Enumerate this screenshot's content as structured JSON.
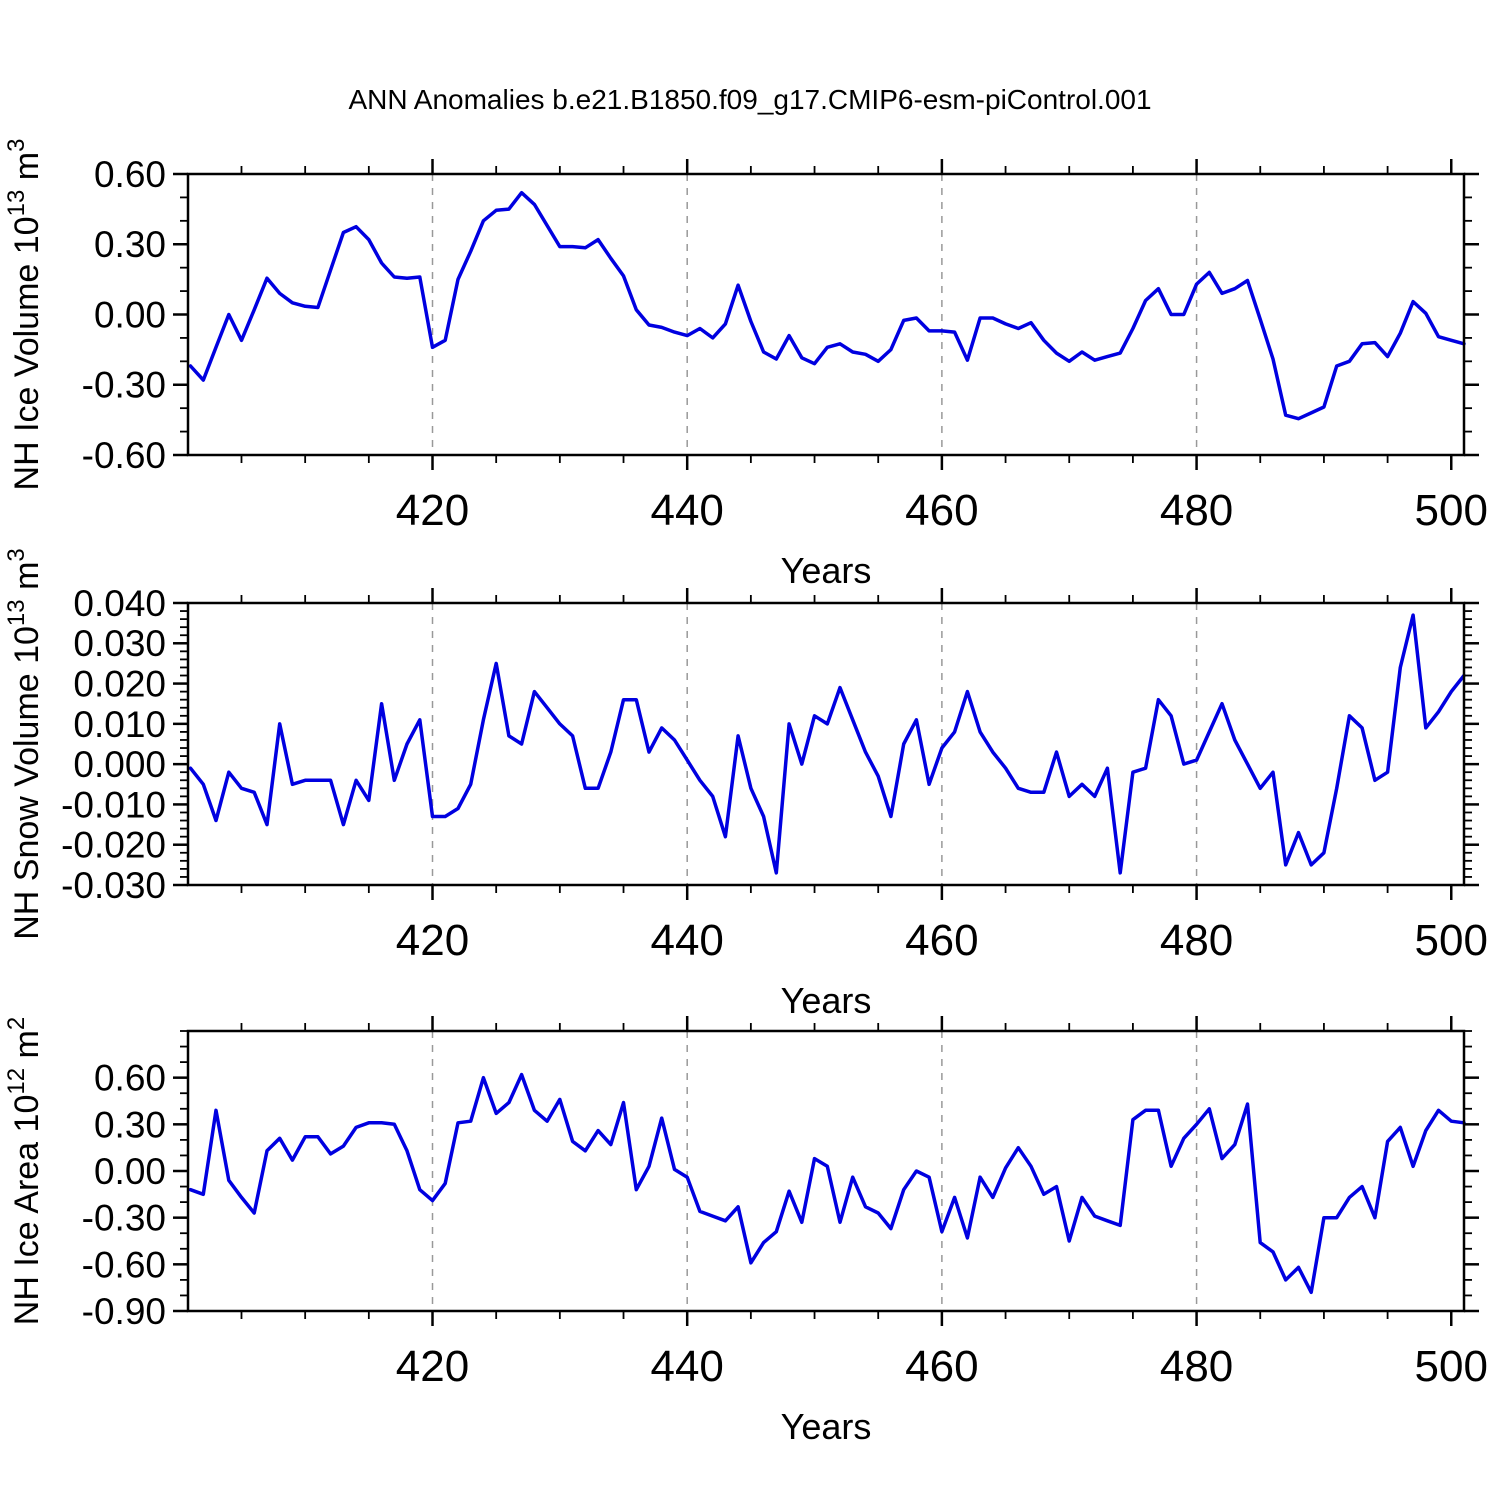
{
  "title": "ANN Anomalies b.e21.B1850.f09_g17.CMIP6-esm-piControl.001",
  "xlabel": "Years",
  "line_color": "#0000e0",
  "axis_color": "#000000",
  "grid_color": "#999999",
  "xlim": [
    400.8,
    501.0
  ],
  "x_major_ticks": [
    420,
    440,
    460,
    480,
    500
  ],
  "x_major_labels": [
    "420",
    "440",
    "460",
    "480",
    "500"
  ],
  "x_minor_ticks": [
    405,
    410,
    415,
    425,
    430,
    435,
    445,
    450,
    455,
    465,
    470,
    475,
    485,
    490,
    495
  ],
  "x_grid": [
    420,
    440,
    460,
    480
  ],
  "panels": [
    {
      "id": "nh-ice-volume",
      "ylabel": [
        [
          "NH Ice Volume 10",
          false
        ],
        [
          "13",
          true
        ],
        [
          " m",
          false
        ],
        [
          "3",
          true
        ]
      ],
      "ylim": [
        -0.6,
        0.6
      ],
      "ymajor": [
        0.6,
        0.3,
        0.0,
        -0.3,
        -0.6
      ],
      "ylabels": [
        "0.60",
        "0.30",
        "0.00",
        "-0.30",
        "-0.60"
      ],
      "yminor_step": 0.1
    },
    {
      "id": "nh-snow-volume",
      "ylabel": [
        [
          "NH Snow Volume 10",
          false
        ],
        [
          "13",
          true
        ],
        [
          " m",
          false
        ],
        [
          "3",
          true
        ]
      ],
      "ylim": [
        -0.03,
        0.04
      ],
      "ymajor": [
        0.04,
        0.03,
        0.02,
        0.01,
        0.0,
        -0.01,
        -0.02,
        -0.03
      ],
      "ylabels": [
        "0.040",
        "0.030",
        "0.020",
        "0.010",
        "0.000",
        "-0.010",
        "-0.020",
        "-0.030"
      ],
      "yminor_step": 0.002
    },
    {
      "id": "nh-ice-area",
      "ylabel": [
        [
          "NH Ice Area 10",
          false
        ],
        [
          "12",
          true
        ],
        [
          " m",
          false
        ],
        [
          "2",
          true
        ]
      ],
      "ylim": [
        -0.9,
        0.9
      ],
      "ymajor": [
        0.6,
        0.3,
        0.0,
        -0.3,
        -0.6,
        -0.9
      ],
      "ylabels": [
        "0.60",
        "0.30",
        "0.00",
        "-0.30",
        "-0.60",
        "-0.90"
      ],
      "yminor_step": 0.1
    }
  ],
  "chart_data": [
    {
      "type": "line",
      "title": "ANN Anomalies b.e21.B1850.f09_g17.CMIP6-esm-piControl.001",
      "ylabel": "NH Ice Volume 10^13 m^3",
      "xlabel": "Years",
      "xlim": [
        400.8,
        501.0
      ],
      "ylim": [
        -0.6,
        0.6
      ],
      "legend": "none",
      "grid": "vertical dashed at 420,440,460,480",
      "x": [
        401,
        402,
        403,
        404,
        405,
        406,
        407,
        408,
        409,
        410,
        411,
        412,
        413,
        414,
        415,
        416,
        417,
        418,
        419,
        420,
        421,
        422,
        423,
        424,
        425,
        426,
        427,
        428,
        429,
        430,
        431,
        432,
        433,
        434,
        435,
        436,
        437,
        438,
        439,
        440,
        441,
        442,
        443,
        444,
        445,
        446,
        447,
        448,
        449,
        450,
        451,
        452,
        453,
        454,
        455,
        456,
        457,
        458,
        459,
        460,
        461,
        462,
        463,
        464,
        465,
        466,
        467,
        468,
        469,
        470,
        471,
        472,
        473,
        474,
        475,
        476,
        477,
        478,
        479,
        480,
        481,
        482,
        483,
        484,
        485,
        486,
        487,
        488,
        489,
        490,
        491,
        492,
        493,
        494,
        495,
        496,
        497,
        498,
        499,
        500,
        501
      ],
      "values": [
        -0.22,
        -0.28,
        -0.14,
        0.0,
        -0.11,
        0.02,
        0.155,
        0.09,
        0.05,
        0.035,
        0.03,
        0.19,
        0.35,
        0.375,
        0.32,
        0.22,
        0.16,
        0.155,
        0.16,
        -0.14,
        -0.11,
        0.15,
        0.27,
        0.4,
        0.445,
        0.45,
        0.52,
        0.47,
        0.38,
        0.29,
        0.29,
        0.285,
        0.32,
        0.24,
        0.165,
        0.02,
        -0.045,
        -0.055,
        -0.075,
        -0.09,
        -0.06,
        -0.1,
        -0.04,
        0.125,
        -0.03,
        -0.16,
        -0.19,
        -0.09,
        -0.185,
        -0.21,
        -0.14,
        -0.125,
        -0.16,
        -0.17,
        -0.2,
        -0.15,
        -0.025,
        -0.015,
        -0.07,
        -0.07,
        -0.075,
        -0.195,
        -0.015,
        -0.015,
        -0.04,
        -0.06,
        -0.035,
        -0.11,
        -0.165,
        -0.2,
        -0.16,
        -0.195,
        -0.18,
        -0.165,
        -0.06,
        0.06,
        0.11,
        0.0,
        0.0,
        0.13,
        0.18,
        0.09,
        0.11,
        0.145,
        -0.02,
        -0.19,
        -0.43,
        -0.445,
        -0.42,
        -0.395,
        -0.22,
        -0.2,
        -0.125,
        -0.12,
        -0.18,
        -0.08,
        0.055,
        0.005,
        -0.095,
        -0.11,
        -0.125
      ]
    },
    {
      "type": "line",
      "title": "",
      "ylabel": "NH Snow Volume 10^13 m^3",
      "xlabel": "Years",
      "xlim": [
        400.8,
        501.0
      ],
      "ylim": [
        -0.03,
        0.04
      ],
      "legend": "none",
      "grid": "vertical dashed at 420,440,460,480",
      "x": [
        401,
        402,
        403,
        404,
        405,
        406,
        407,
        408,
        409,
        410,
        411,
        412,
        413,
        414,
        415,
        416,
        417,
        418,
        419,
        420,
        421,
        422,
        423,
        424,
        425,
        426,
        427,
        428,
        429,
        430,
        431,
        432,
        433,
        434,
        435,
        436,
        437,
        438,
        439,
        440,
        441,
        442,
        443,
        444,
        445,
        446,
        447,
        448,
        449,
        450,
        451,
        452,
        453,
        454,
        455,
        456,
        457,
        458,
        459,
        460,
        461,
        462,
        463,
        464,
        465,
        466,
        467,
        468,
        469,
        470,
        471,
        472,
        473,
        474,
        475,
        476,
        477,
        478,
        479,
        480,
        481,
        482,
        483,
        484,
        485,
        486,
        487,
        488,
        489,
        490,
        491,
        492,
        493,
        494,
        495,
        496,
        497,
        498,
        499,
        500,
        501
      ],
      "values": [
        -0.001,
        -0.005,
        -0.014,
        -0.002,
        -0.006,
        -0.007,
        -0.015,
        0.01,
        -0.005,
        -0.004,
        -0.004,
        -0.004,
        -0.015,
        -0.004,
        -0.009,
        0.015,
        -0.004,
        0.005,
        0.011,
        -0.013,
        -0.013,
        -0.011,
        -0.005,
        0.011,
        0.025,
        0.007,
        0.005,
        0.018,
        0.014,
        0.01,
        0.007,
        -0.006,
        -0.006,
        0.003,
        0.016,
        0.016,
        0.003,
        0.009,
        0.006,
        0.001,
        -0.004,
        -0.008,
        -0.018,
        0.007,
        -0.006,
        -0.013,
        -0.027,
        0.01,
        0.0,
        0.012,
        0.01,
        0.019,
        0.011,
        0.003,
        -0.003,
        -0.013,
        0.005,
        0.011,
        -0.005,
        0.004,
        0.008,
        0.018,
        0.008,
        0.003,
        -0.001,
        -0.006,
        -0.007,
        -0.007,
        0.003,
        -0.008,
        -0.005,
        -0.008,
        -0.001,
        -0.027,
        -0.002,
        -0.001,
        0.016,
        0.012,
        0.0,
        0.001,
        0.008,
        0.015,
        0.006,
        0.0,
        -0.006,
        -0.002,
        -0.025,
        -0.017,
        -0.025,
        -0.022,
        -0.006,
        0.012,
        0.009,
        -0.004,
        -0.002,
        0.024,
        0.037,
        0.009,
        0.013,
        0.018,
        0.022
      ]
    },
    {
      "type": "line",
      "title": "",
      "ylabel": "NH Ice Area 10^12 m^2",
      "xlabel": "Years",
      "xlim": [
        400.8,
        501.0
      ],
      "ylim": [
        -0.9,
        0.9
      ],
      "legend": "none",
      "grid": "vertical dashed at 420,440,460,480",
      "x": [
        401,
        402,
        403,
        404,
        405,
        406,
        407,
        408,
        409,
        410,
        411,
        412,
        413,
        414,
        415,
        416,
        417,
        418,
        419,
        420,
        421,
        422,
        423,
        424,
        425,
        426,
        427,
        428,
        429,
        430,
        431,
        432,
        433,
        434,
        435,
        436,
        437,
        438,
        439,
        440,
        441,
        442,
        443,
        444,
        445,
        446,
        447,
        448,
        449,
        450,
        451,
        452,
        453,
        454,
        455,
        456,
        457,
        458,
        459,
        460,
        461,
        462,
        463,
        464,
        465,
        466,
        467,
        468,
        469,
        470,
        471,
        472,
        473,
        474,
        475,
        476,
        477,
        478,
        479,
        480,
        481,
        482,
        483,
        484,
        485,
        486,
        487,
        488,
        489,
        490,
        491,
        492,
        493,
        494,
        495,
        496,
        497,
        498,
        499,
        500,
        501
      ],
      "values": [
        -0.12,
        -0.15,
        0.39,
        -0.06,
        -0.17,
        -0.27,
        0.13,
        0.21,
        0.07,
        0.22,
        0.22,
        0.11,
        0.16,
        0.28,
        0.31,
        0.31,
        0.3,
        0.13,
        -0.12,
        -0.19,
        -0.08,
        0.31,
        0.32,
        0.6,
        0.37,
        0.44,
        0.62,
        0.39,
        0.32,
        0.46,
        0.19,
        0.13,
        0.26,
        0.17,
        0.44,
        -0.12,
        0.03,
        0.34,
        0.01,
        -0.04,
        -0.26,
        -0.29,
        -0.32,
        -0.23,
        -0.59,
        -0.46,
        -0.39,
        -0.13,
        -0.33,
        0.08,
        0.03,
        -0.33,
        -0.04,
        -0.23,
        -0.27,
        -0.37,
        -0.12,
        0.0,
        -0.04,
        -0.39,
        -0.17,
        -0.43,
        -0.04,
        -0.17,
        0.02,
        0.15,
        0.03,
        -0.15,
        -0.1,
        -0.45,
        -0.17,
        -0.29,
        -0.32,
        -0.35,
        0.33,
        0.39,
        0.39,
        0.03,
        0.21,
        0.3,
        0.4,
        0.08,
        0.17,
        0.43,
        -0.46,
        -0.52,
        -0.7,
        -0.62,
        -0.78,
        -0.3,
        -0.3,
        -0.17,
        -0.1,
        -0.3,
        0.19,
        0.28,
        0.03,
        0.26,
        0.39,
        0.32,
        0.31
      ]
    }
  ]
}
